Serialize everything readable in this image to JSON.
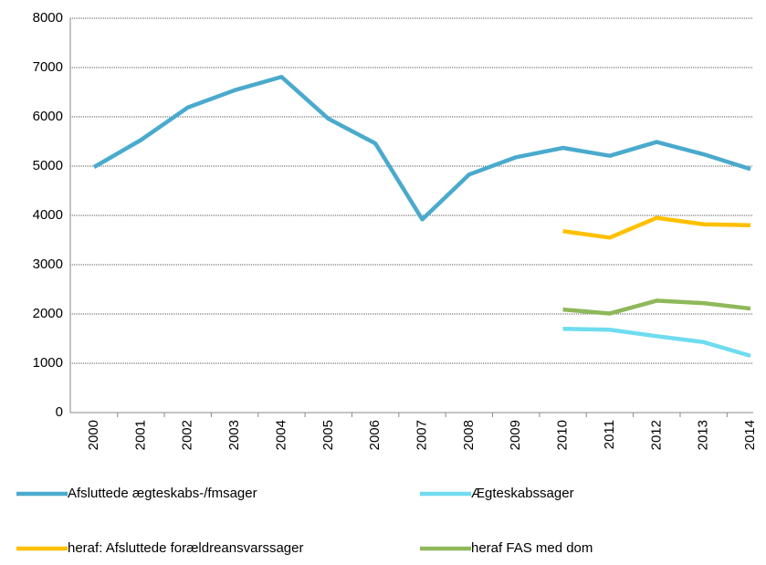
{
  "chart_data": {
    "type": "line",
    "categories": [
      "2000",
      "2001",
      "2002",
      "2003",
      "2004",
      "2005",
      "2006",
      "2007",
      "2008",
      "2009",
      "2010",
      "2011",
      "2012",
      "2013",
      "2014"
    ],
    "series": [
      {
        "name": "Afsluttede ægteskabs-/fmsager",
        "color": "#4aaacd",
        "values": [
          4980,
          5530,
          6190,
          6540,
          6810,
          5960,
          5460,
          3920,
          4830,
          5180,
          5370,
          5210,
          5490,
          5240,
          4940
        ]
      },
      {
        "name": "Ægteskabssager",
        "color": "#6fdcf0",
        "values": [
          null,
          null,
          null,
          null,
          null,
          null,
          null,
          null,
          null,
          null,
          1700,
          1680,
          1550,
          1430,
          1150
        ]
      },
      {
        "name": "heraf: Afsluttede forældreansvarssager",
        "color": "#ffc000",
        "values": [
          null,
          null,
          null,
          null,
          null,
          null,
          null,
          null,
          null,
          null,
          3680,
          3550,
          3950,
          3820,
          3800
        ]
      },
      {
        "name": "heraf FAS med dom",
        "color": "#8fb85a",
        "values": [
          null,
          null,
          null,
          null,
          null,
          null,
          null,
          null,
          null,
          null,
          2090,
          2010,
          2270,
          2220,
          2110
        ]
      }
    ],
    "ylim": [
      0,
      8000
    ],
    "yticks": [
      0,
      1000,
      2000,
      3000,
      4000,
      5000,
      6000,
      7000,
      8000
    ],
    "grid": true
  }
}
